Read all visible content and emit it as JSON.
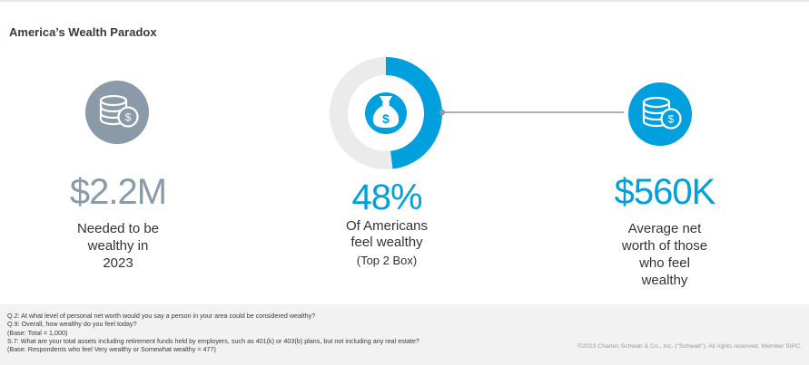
{
  "title": "America’s Wealth Paradox",
  "stats": [
    {
      "value": "$2.2M",
      "label_lines": [
        "Needed to be",
        "wealthy in",
        "2023"
      ],
      "icon": "coin-stack-dollar-icon",
      "color": "#8a9aa8"
    },
    {
      "value": "48%",
      "percent": 48,
      "label_lines": [
        "Of Americans",
        "feel wealthy"
      ],
      "sublabel": "(Top 2 Box)",
      "icon": "money-bag-icon",
      "color": "#00a0df",
      "track_color": "#ebebeb"
    },
    {
      "value": "$560K",
      "label_lines": [
        "Average net",
        "worth of those",
        "who feel",
        "wealthy"
      ],
      "icon": "coin-stack-dollar-icon",
      "color": "#00a0df"
    }
  ],
  "connector_color": "#8a9aa8",
  "footnotes": [
    "Q.2:  At what level of personal net worth would you say a person in your area could be considered wealthy?",
    "Q.9:  Overall, how wealthy do you feel today?",
    "(Base: Total = 1,000)",
    "S.7: What are your total assets including retirement funds held by employers, such as 401(k) or 403(b) plans, but not including any real estate?",
    "(Base: Respondents who feel Very wealthy or Somewhat wealthy = 477)"
  ],
  "copyright": "©2023 Charles Schwab & Co., Inc. (\"Schwab\"). All rights reserved. Member SIPC."
}
